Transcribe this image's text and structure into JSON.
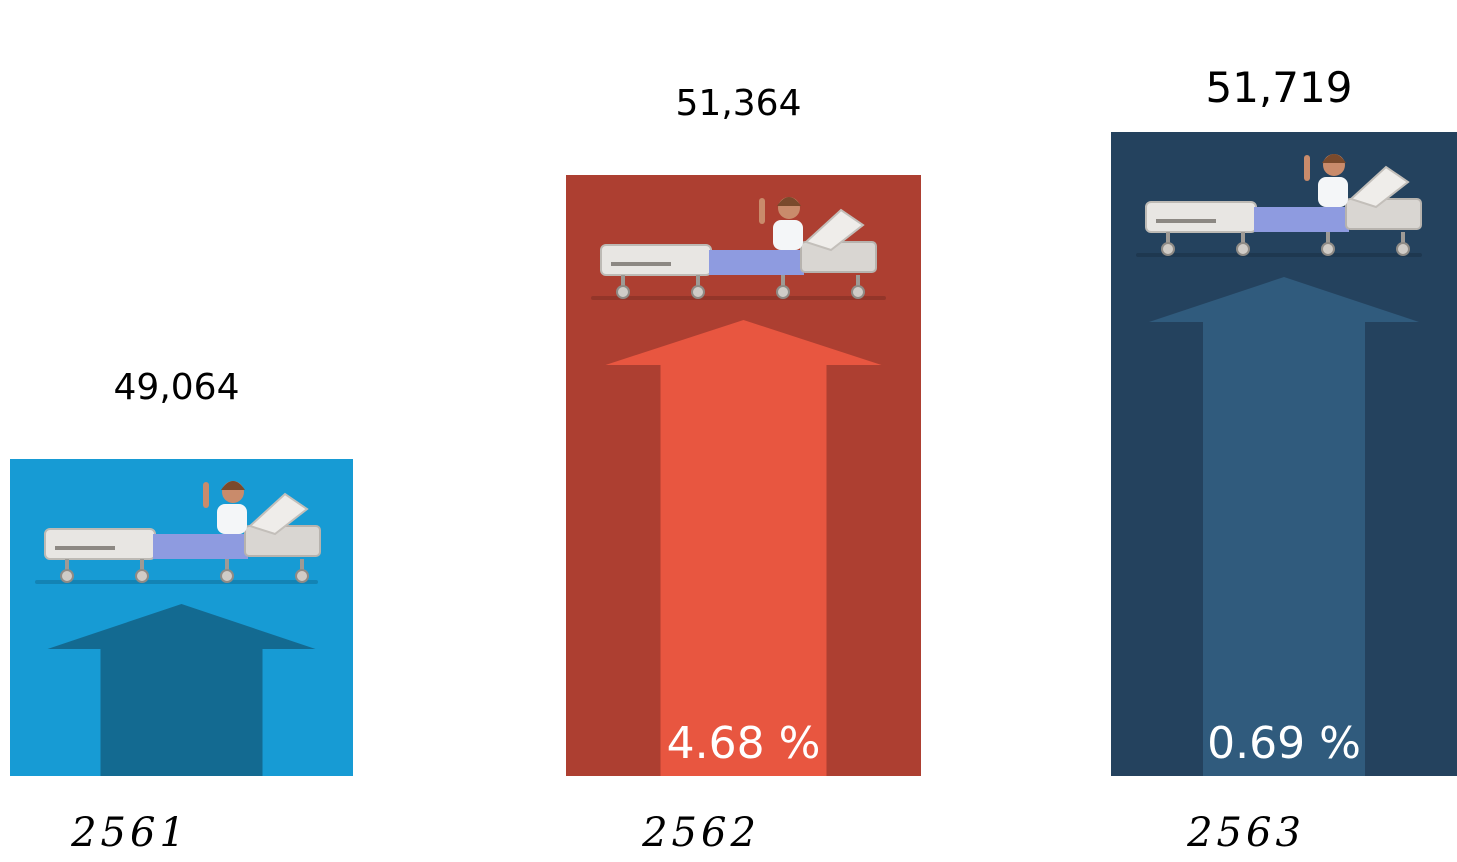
{
  "chart_data": {
    "type": "bar",
    "categories": [
      "2561",
      "2562",
      "2563"
    ],
    "values": [
      49064,
      51364,
      51719
    ],
    "value_labels": [
      "49,064",
      "51,364",
      "51,719"
    ],
    "change_labels": [
      "",
      "4.68 %",
      "0.69 %"
    ],
    "bar_colors": [
      "#179bd4",
      "#ad3f31",
      "#24425e"
    ],
    "arrow_colors": [
      "#136a91",
      "#e85640",
      "#305b7d"
    ],
    "icon": "hospital-bed-patient-icon",
    "title": "",
    "xlabel": "",
    "ylabel": "",
    "grid": false
  }
}
